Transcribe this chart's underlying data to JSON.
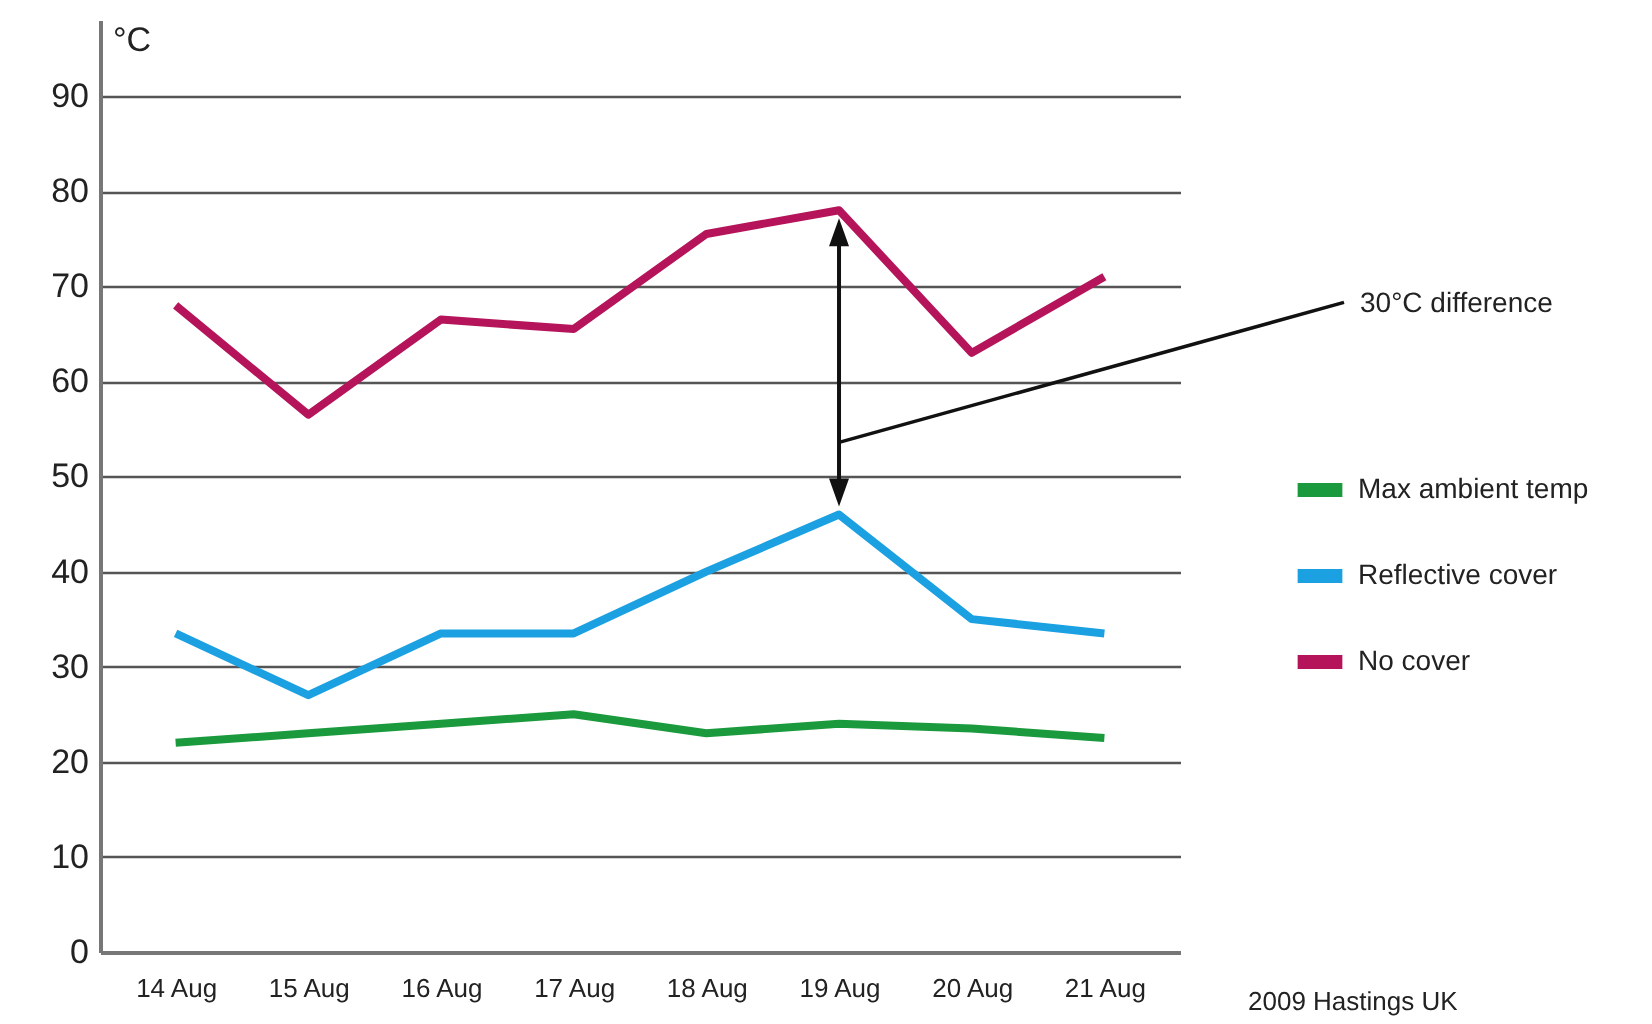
{
  "chart_data": {
    "type": "line",
    "ylabel": "°C",
    "categories": [
      "14 Aug",
      "15 Aug",
      "16 Aug",
      "17 Aug",
      "18 Aug",
      "19 Aug",
      "20 Aug",
      "21 Aug"
    ],
    "series": [
      {
        "name": "Max ambient temp",
        "color": "#1a9a3c",
        "values": [
          22,
          23,
          24,
          25,
          23,
          24,
          23.5,
          22.5
        ]
      },
      {
        "name": "Reflective cover",
        "color": "#1ba1e2",
        "values": [
          33.5,
          27,
          33.5,
          33.5,
          40,
          46,
          35,
          33.5
        ]
      },
      {
        "name": "No cover",
        "color": "#b5145a",
        "values": [
          68,
          56.5,
          66.5,
          65.5,
          75.5,
          78,
          63,
          71
        ]
      }
    ],
    "ylim": [
      0,
      98
    ],
    "yticks": [
      0,
      10,
      20,
      30,
      40,
      50,
      60,
      70,
      80,
      90
    ],
    "grid": "y",
    "legend": "right",
    "annotations": [
      "30°C difference",
      "2009 Hastings UK"
    ]
  }
}
